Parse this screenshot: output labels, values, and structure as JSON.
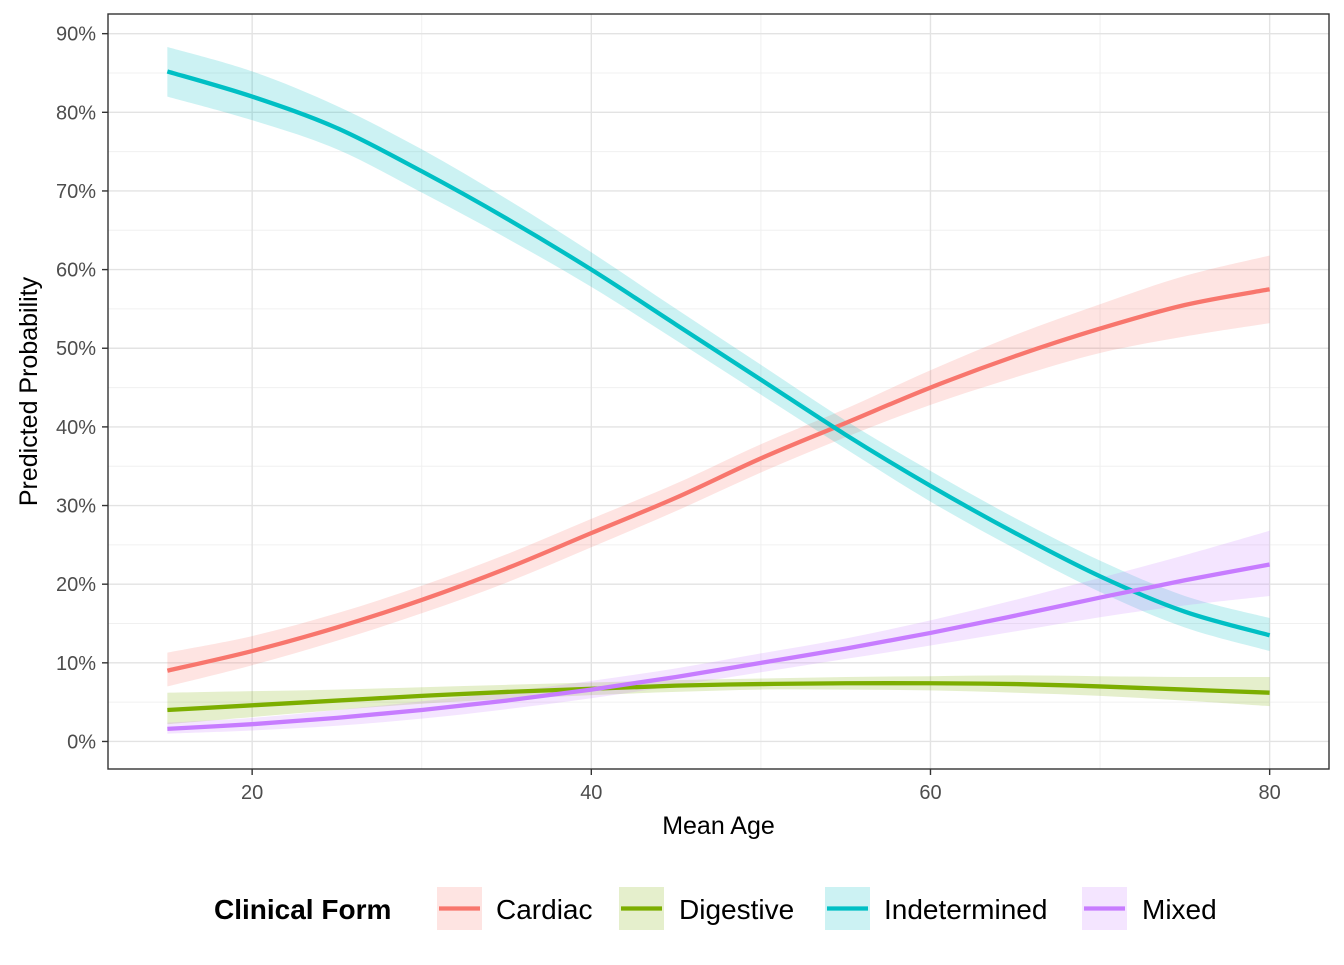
{
  "chart_data": {
    "type": "line",
    "title": "",
    "xlabel": "Mean Age",
    "ylabel": "Predicted Probability",
    "xlim": [
      11.5,
      83.5
    ],
    "ylim": [
      -0.035,
      0.925
    ],
    "x_ticks": [
      20,
      40,
      60,
      80
    ],
    "y_ticks": [
      0,
      0.1,
      0.2,
      0.3,
      0.4,
      0.5,
      0.6,
      0.7,
      0.8,
      0.9
    ],
    "y_tick_labels": [
      "0%",
      "10%",
      "20%",
      "30%",
      "40%",
      "50%",
      "60%",
      "70%",
      "80%",
      "90%"
    ],
    "grid": true,
    "legend": {
      "title": "Clinical Form",
      "position": "bottom"
    },
    "x": [
      15,
      20,
      25,
      30,
      35,
      40,
      45,
      50,
      55,
      60,
      65,
      70,
      75,
      80
    ],
    "series": [
      {
        "name": "Cardiac",
        "color": "#F8766D",
        "values": [
          0.09,
          0.115,
          0.145,
          0.18,
          0.22,
          0.265,
          0.31,
          0.36,
          0.405,
          0.45,
          0.49,
          0.525,
          0.555,
          0.575
        ],
        "lower": [
          0.07,
          0.097,
          0.128,
          0.163,
          0.202,
          0.247,
          0.293,
          0.342,
          0.387,
          0.428,
          0.463,
          0.494,
          0.515,
          0.532
        ],
        "upper": [
          0.113,
          0.134,
          0.163,
          0.198,
          0.238,
          0.283,
          0.328,
          0.378,
          0.423,
          0.472,
          0.517,
          0.556,
          0.592,
          0.618
        ]
      },
      {
        "name": "Digestive",
        "color": "#7CAE00",
        "values": [
          0.04,
          0.046,
          0.052,
          0.058,
          0.063,
          0.067,
          0.071,
          0.073,
          0.074,
          0.074,
          0.073,
          0.07,
          0.066,
          0.062
        ],
        "lower": [
          0.022,
          0.031,
          0.04,
          0.048,
          0.054,
          0.059,
          0.063,
          0.066,
          0.066,
          0.065,
          0.062,
          0.058,
          0.052,
          0.045
        ],
        "upper": [
          0.062,
          0.064,
          0.066,
          0.069,
          0.072,
          0.075,
          0.078,
          0.08,
          0.082,
          0.083,
          0.084,
          0.083,
          0.082,
          0.082
        ]
      },
      {
        "name": "Indetermined",
        "color": "#00BFC4",
        "values": [
          0.852,
          0.82,
          0.78,
          0.725,
          0.665,
          0.6,
          0.53,
          0.46,
          0.39,
          0.325,
          0.265,
          0.21,
          0.165,
          0.135
        ],
        "lower": [
          0.82,
          0.79,
          0.753,
          0.698,
          0.64,
          0.578,
          0.51,
          0.441,
          0.372,
          0.305,
          0.245,
          0.19,
          0.145,
          0.115
        ],
        "upper": [
          0.883,
          0.852,
          0.808,
          0.753,
          0.69,
          0.622,
          0.55,
          0.479,
          0.408,
          0.344,
          0.284,
          0.23,
          0.185,
          0.157
        ]
      },
      {
        "name": "Mixed",
        "color": "#C77CFF",
        "values": [
          0.016,
          0.022,
          0.03,
          0.04,
          0.052,
          0.066,
          0.082,
          0.1,
          0.118,
          0.138,
          0.16,
          0.183,
          0.205,
          0.225
        ],
        "lower": [
          0.01,
          0.014,
          0.02,
          0.029,
          0.041,
          0.055,
          0.071,
          0.088,
          0.105,
          0.122,
          0.14,
          0.158,
          0.173,
          0.185
        ],
        "upper": [
          0.024,
          0.03,
          0.04,
          0.051,
          0.063,
          0.077,
          0.093,
          0.112,
          0.131,
          0.154,
          0.18,
          0.208,
          0.237,
          0.268
        ]
      }
    ]
  }
}
